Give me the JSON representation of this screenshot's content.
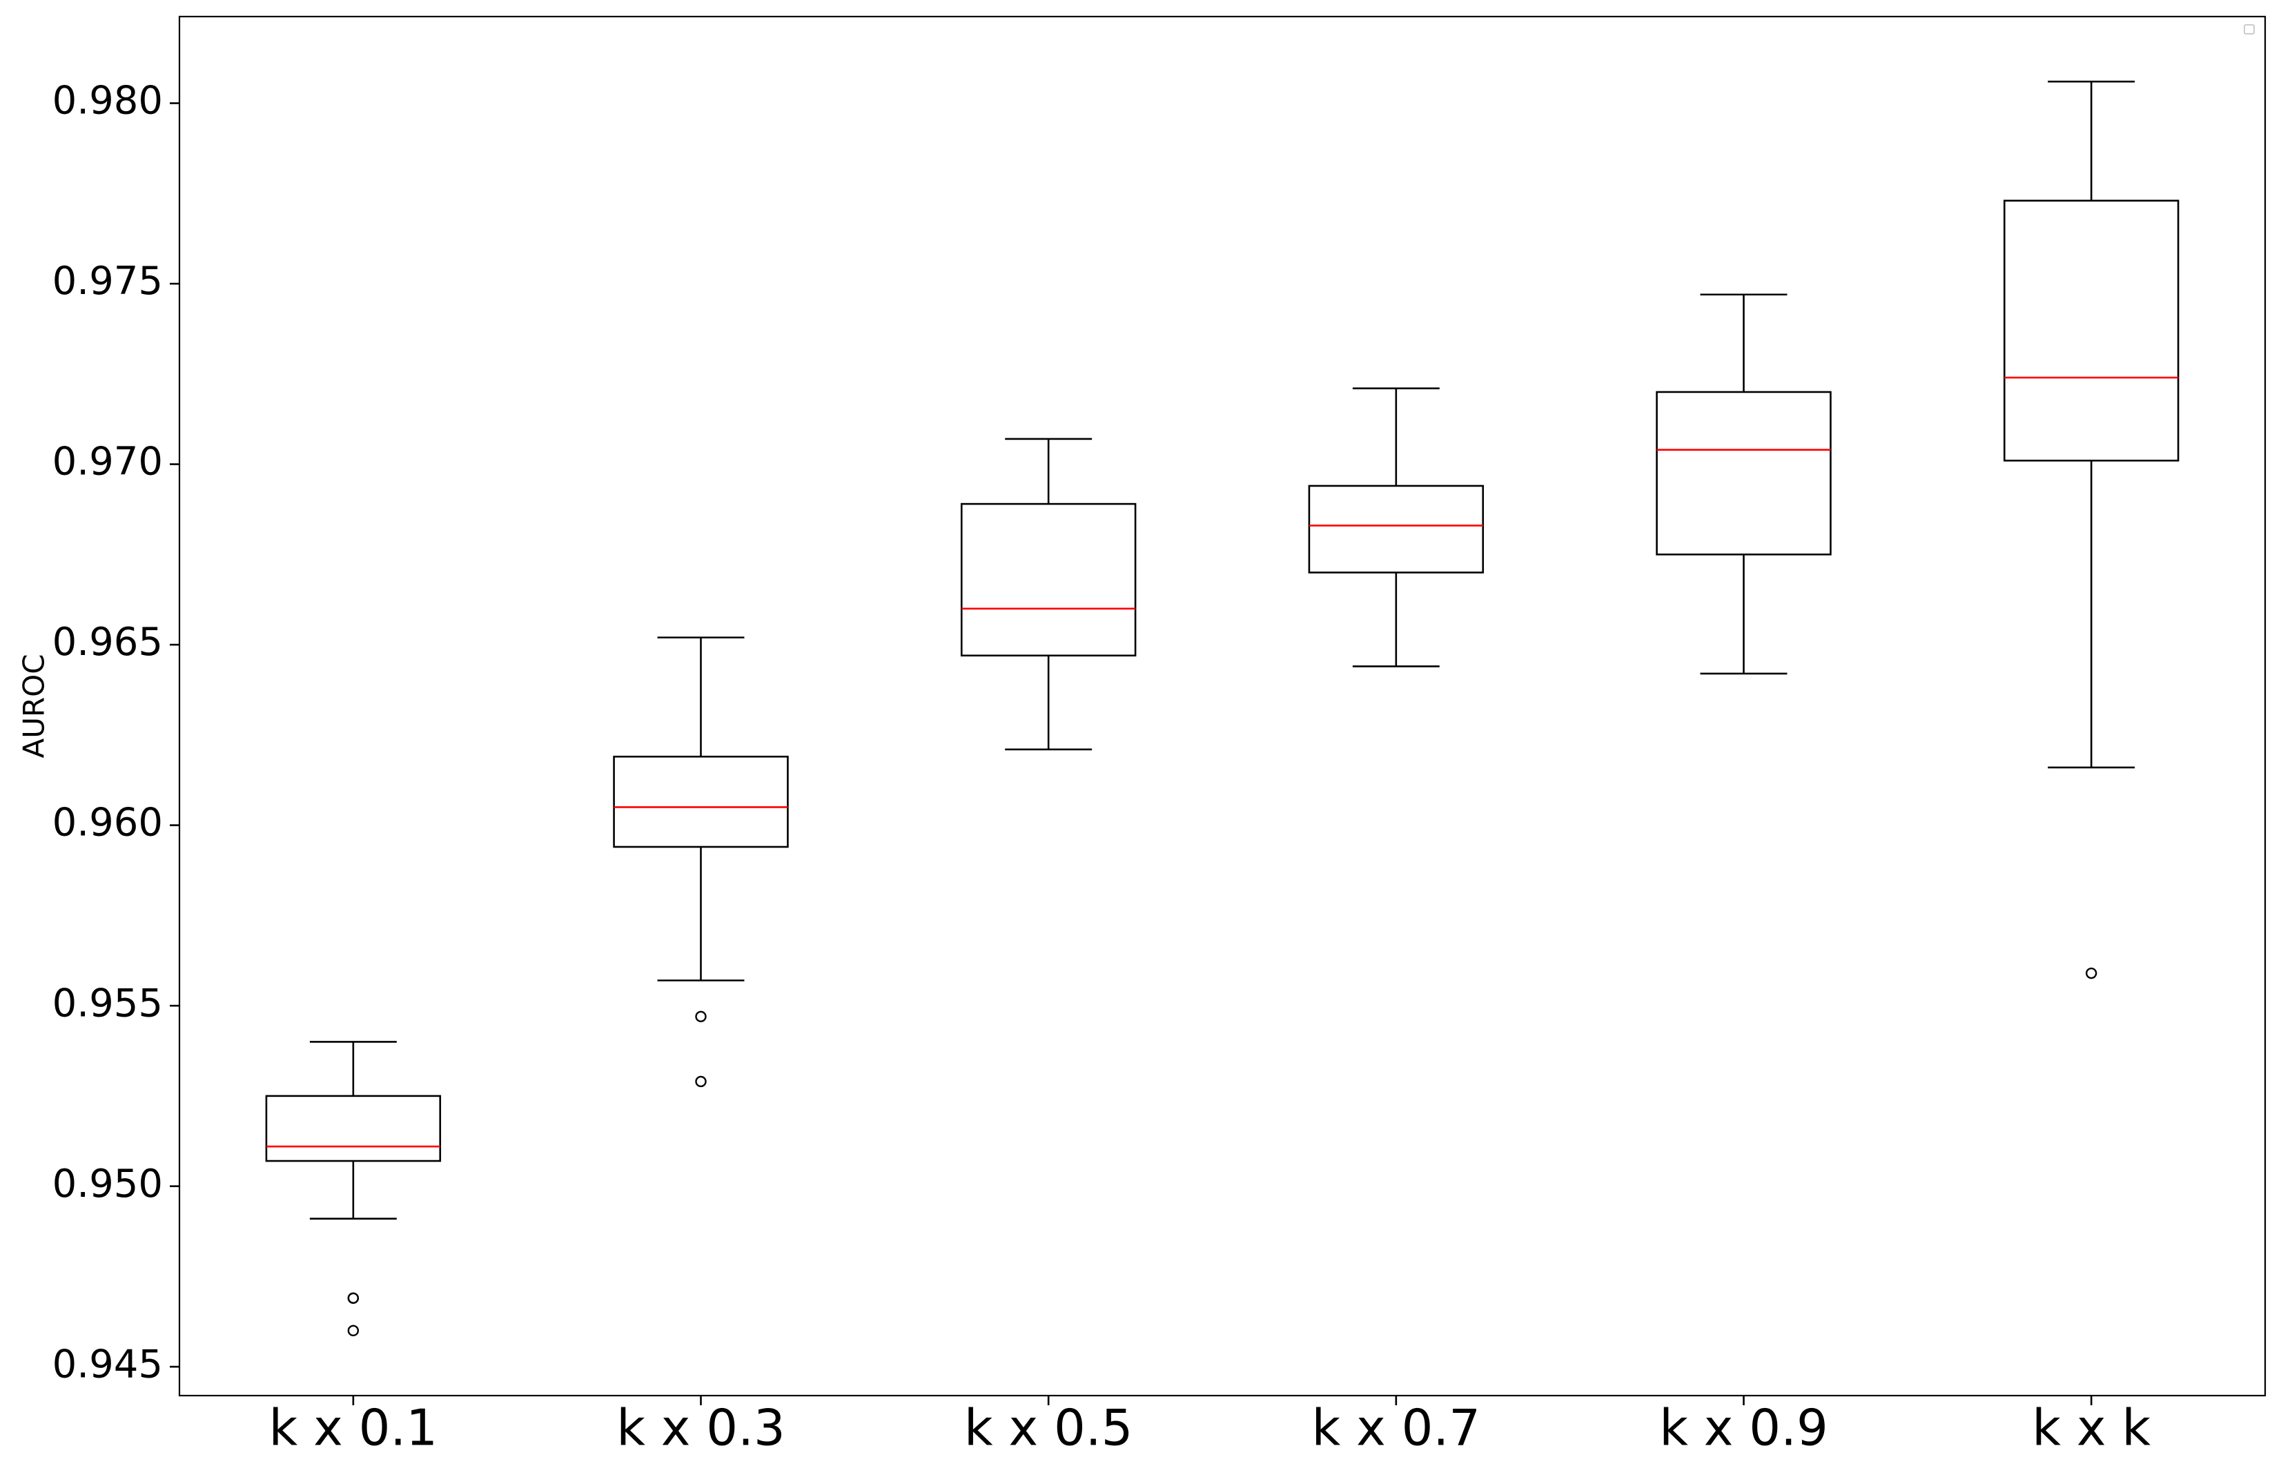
{
  "chart_data": {
    "type": "box",
    "title": "",
    "xlabel": "",
    "ylabel": "AUROC",
    "ylim": [
      0.9442,
      0.9824
    ],
    "yticks": [
      "0.945",
      "0.950",
      "0.955",
      "0.960",
      "0.965",
      "0.970",
      "0.975",
      "0.980"
    ],
    "grid": false,
    "legend": "empty box, top-right",
    "colors": {
      "box": "#000000",
      "median": "#ff0000",
      "axes": "#000000",
      "background": "#ffffff"
    },
    "categories": [
      "k x 0.1",
      "k x 0.3",
      "k x 0.5",
      "k x 0.7",
      "k x 0.9",
      "k x k"
    ],
    "boxes": [
      {
        "whisker_low": 0.9491,
        "q1": 0.9507,
        "median": 0.9511,
        "q3": 0.9525,
        "whisker_high": 0.954,
        "fliers": [
          0.9469,
          0.9469,
          0.946
        ]
      },
      {
        "whisker_low": 0.9557,
        "q1": 0.9594,
        "median": 0.9605,
        "q3": 0.9619,
        "whisker_high": 0.9652,
        "fliers": [
          0.9547,
          0.9529
        ]
      },
      {
        "whisker_low": 0.9621,
        "q1": 0.9647,
        "median": 0.966,
        "q3": 0.9689,
        "whisker_high": 0.9707,
        "fliers": []
      },
      {
        "whisker_low": 0.9644,
        "q1": 0.967,
        "median": 0.9683,
        "q3": 0.9694,
        "whisker_high": 0.9721,
        "fliers": []
      },
      {
        "whisker_low": 0.9642,
        "q1": 0.9675,
        "median": 0.9704,
        "q3": 0.972,
        "whisker_high": 0.9747,
        "fliers": []
      },
      {
        "whisker_low": 0.9616,
        "q1": 0.9701,
        "median": 0.9724,
        "q3": 0.9773,
        "whisker_high": 0.9806,
        "fliers": [
          0.9559
        ]
      }
    ]
  }
}
